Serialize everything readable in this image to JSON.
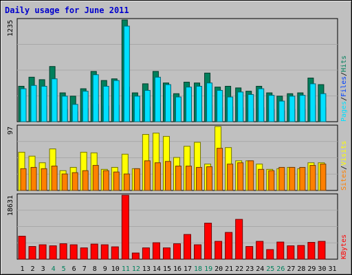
{
  "title": "Daily usage for June 2011",
  "colors": {
    "background": "#c0c0c0",
    "plot": "#c0c0c0",
    "grid": "#a8a8a8",
    "hits": "#00805c",
    "files": "#0040ff",
    "pages": "#00e0ff",
    "visits": "#ffff00",
    "sites": "#ff8000",
    "kbytes": "#ff0000",
    "weekend": "#00805c",
    "weekday": "#000000"
  },
  "chart_data": [
    {
      "type": "bar",
      "panel": "top",
      "y_max_label": "1235",
      "ylim": [
        0,
        1235
      ],
      "categories": [
        "1",
        "2",
        "3",
        "4",
        "5",
        "6",
        "7",
        "8",
        "9",
        "10",
        "11",
        "12",
        "13",
        "14",
        "15",
        "16",
        "17",
        "18",
        "19",
        "20",
        "21",
        "22",
        "23",
        "24",
        "25",
        "26",
        "27",
        "28",
        "29",
        "30",
        "31"
      ],
      "legend": [
        "Pages",
        "/",
        "Files",
        "/",
        "Hits"
      ],
      "legend_colors": [
        "#00e0ff",
        "#000000",
        "#0040ff",
        "#000000",
        "#00805c"
      ],
      "series": [
        {
          "name": "Hits",
          "values": [
            430,
            540,
            510,
            670,
            350,
            310,
            400,
            610,
            500,
            520,
            1235,
            350,
            460,
            610,
            470,
            340,
            480,
            470,
            590,
            420,
            430,
            410,
            370,
            430,
            350,
            310,
            340,
            350,
            530,
            450,
            0
          ]
        },
        {
          "name": "Files",
          "values": [
            180,
            200,
            190,
            230,
            150,
            120,
            160,
            210,
            190,
            200,
            420,
            150,
            180,
            220,
            180,
            150,
            180,
            180,
            200,
            170,
            180,
            170,
            160,
            170,
            150,
            130,
            150,
            150,
            200,
            170,
            0
          ]
        },
        {
          "name": "Pages",
          "values": [
            400,
            440,
            430,
            520,
            310,
            210,
            370,
            570,
            430,
            500,
            1160,
            310,
            380,
            540,
            450,
            300,
            420,
            430,
            470,
            380,
            300,
            360,
            330,
            400,
            320,
            250,
            310,
            320,
            460,
            340,
            0
          ]
        }
      ]
    },
    {
      "type": "bar",
      "panel": "middle",
      "y_max_label": "97",
      "ylim": [
        0,
        97
      ],
      "categories": [
        "1",
        "2",
        "3",
        "4",
        "5",
        "6",
        "7",
        "8",
        "9",
        "10",
        "11",
        "12",
        "13",
        "14",
        "15",
        "16",
        "17",
        "18",
        "19",
        "20",
        "21",
        "22",
        "23",
        "24",
        "25",
        "26",
        "27",
        "28",
        "29",
        "30",
        "31"
      ],
      "legend": [
        "Sites",
        "/",
        "Visits"
      ],
      "legend_colors": [
        "#ff8000",
        "#000000",
        "#ffff00"
      ],
      "series": [
        {
          "name": "Visits",
          "values": [
            58,
            52,
            42,
            63,
            30,
            35,
            58,
            57,
            32,
            35,
            55,
            33,
            85,
            87,
            82,
            50,
            67,
            73,
            40,
            97,
            65,
            45,
            45,
            40,
            32,
            33,
            35,
            33,
            42,
            42,
            0
          ]
        },
        {
          "name": "Sites",
          "values": [
            33,
            35,
            33,
            37,
            25,
            27,
            30,
            38,
            30,
            28,
            25,
            33,
            45,
            42,
            44,
            37,
            37,
            35,
            36,
            64,
            40,
            42,
            45,
            32,
            30,
            35,
            35,
            35,
            38,
            40,
            0
          ]
        }
      ]
    },
    {
      "type": "bar",
      "panel": "bottom",
      "y_max_label": "18631",
      "ylim": [
        0,
        18631
      ],
      "categories": [
        "1",
        "2",
        "3",
        "4",
        "5",
        "6",
        "7",
        "8",
        "9",
        "10",
        "11",
        "12",
        "13",
        "14",
        "15",
        "16",
        "17",
        "18",
        "19",
        "20",
        "21",
        "22",
        "23",
        "24",
        "25",
        "26",
        "27",
        "28",
        "29",
        "30",
        "31"
      ],
      "legend": [
        "KBytes"
      ],
      "legend_colors": [
        "#ff0000"
      ],
      "series": [
        {
          "name": "KBytes",
          "values": [
            6700,
            3700,
            4200,
            3900,
            4500,
            4200,
            3300,
            4400,
            4200,
            3600,
            18631,
            1800,
            3300,
            4800,
            3300,
            4500,
            7200,
            4200,
            10500,
            5200,
            7800,
            11600,
            3700,
            5200,
            2800,
            5000,
            3900,
            4000,
            4900,
            5200,
            0
          ]
        }
      ]
    }
  ],
  "x_axis": {
    "labels": [
      "1",
      "2",
      "3",
      "4",
      "5",
      "6",
      "7",
      "8",
      "9",
      "10",
      "11",
      "12",
      "13",
      "14",
      "15",
      "16",
      "17",
      "18",
      "19",
      "20",
      "21",
      "22",
      "23",
      "24",
      "25",
      "26",
      "27",
      "28",
      "29",
      "30",
      "31"
    ],
    "weekend_days": [
      "4",
      "5",
      "11",
      "12",
      "18",
      "19",
      "25",
      "26"
    ]
  }
}
